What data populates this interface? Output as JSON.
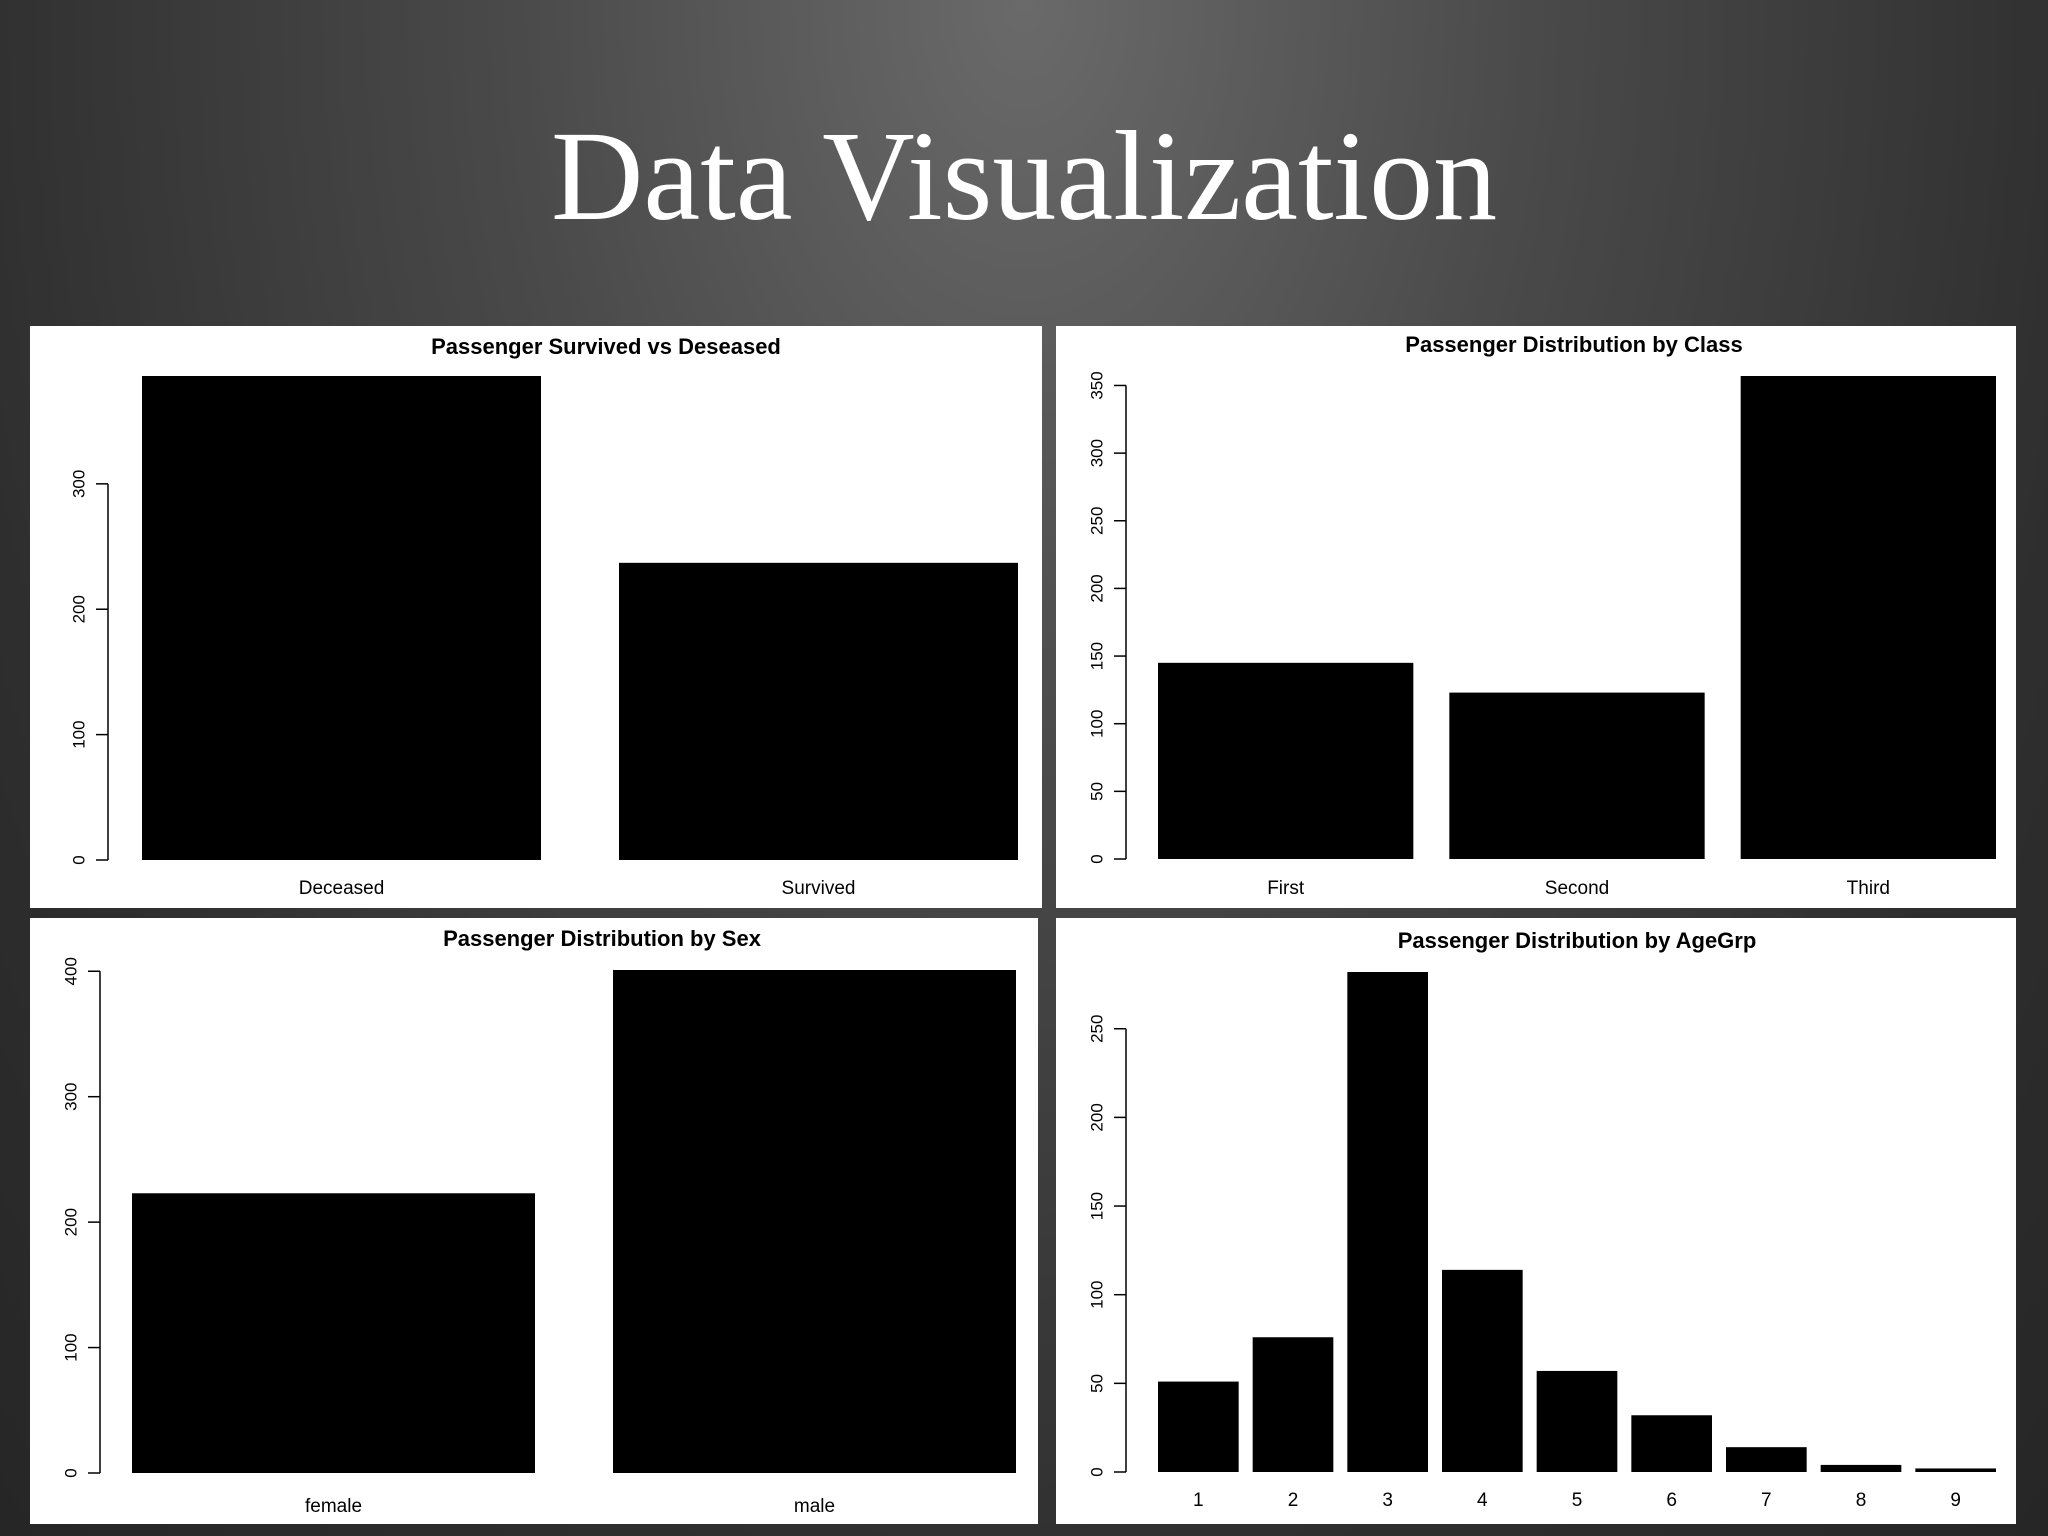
{
  "slide": {
    "title": "Data Visualization"
  },
  "colors": {
    "bar": "#000000",
    "panel_bg": "#ffffff",
    "axis": "#000000"
  },
  "chart_data": [
    {
      "type": "bar",
      "title": "Passenger Survived vs Deseased",
      "categories": [
        "Deceased",
        "Survived"
      ],
      "values": [
        386,
        237
      ],
      "ylim": [
        0,
        386
      ],
      "yticks": [
        0,
        100,
        200,
        300
      ],
      "xlabel": "",
      "ylabel": "",
      "grid": false
    },
    {
      "type": "bar",
      "title": "Passenger Distribution by Class",
      "categories": [
        "First",
        "Second",
        "Third"
      ],
      "values": [
        145,
        123,
        357
      ],
      "ylim": [
        0,
        357
      ],
      "yticks": [
        0,
        50,
        100,
        150,
        200,
        250,
        300,
        350
      ],
      "xlabel": "",
      "ylabel": "",
      "grid": false
    },
    {
      "type": "bar",
      "title": "Passenger Distribution by Sex",
      "categories": [
        "female",
        "male"
      ],
      "values": [
        223,
        401
      ],
      "ylim": [
        0,
        401
      ],
      "yticks": [
        0,
        100,
        200,
        300,
        400
      ],
      "xlabel": "",
      "ylabel": "",
      "grid": false
    },
    {
      "type": "bar",
      "title": "Passenger Distribution by AgeGrp",
      "categories": [
        "1",
        "2",
        "3",
        "4",
        "5",
        "6",
        "7",
        "8",
        "9"
      ],
      "values": [
        51,
        76,
        282,
        114,
        57,
        32,
        14,
        4,
        2
      ],
      "ylim": [
        0,
        282
      ],
      "yticks": [
        0,
        50,
        100,
        150,
        200,
        250
      ],
      "xlabel": "",
      "ylabel": "",
      "grid": false
    }
  ]
}
